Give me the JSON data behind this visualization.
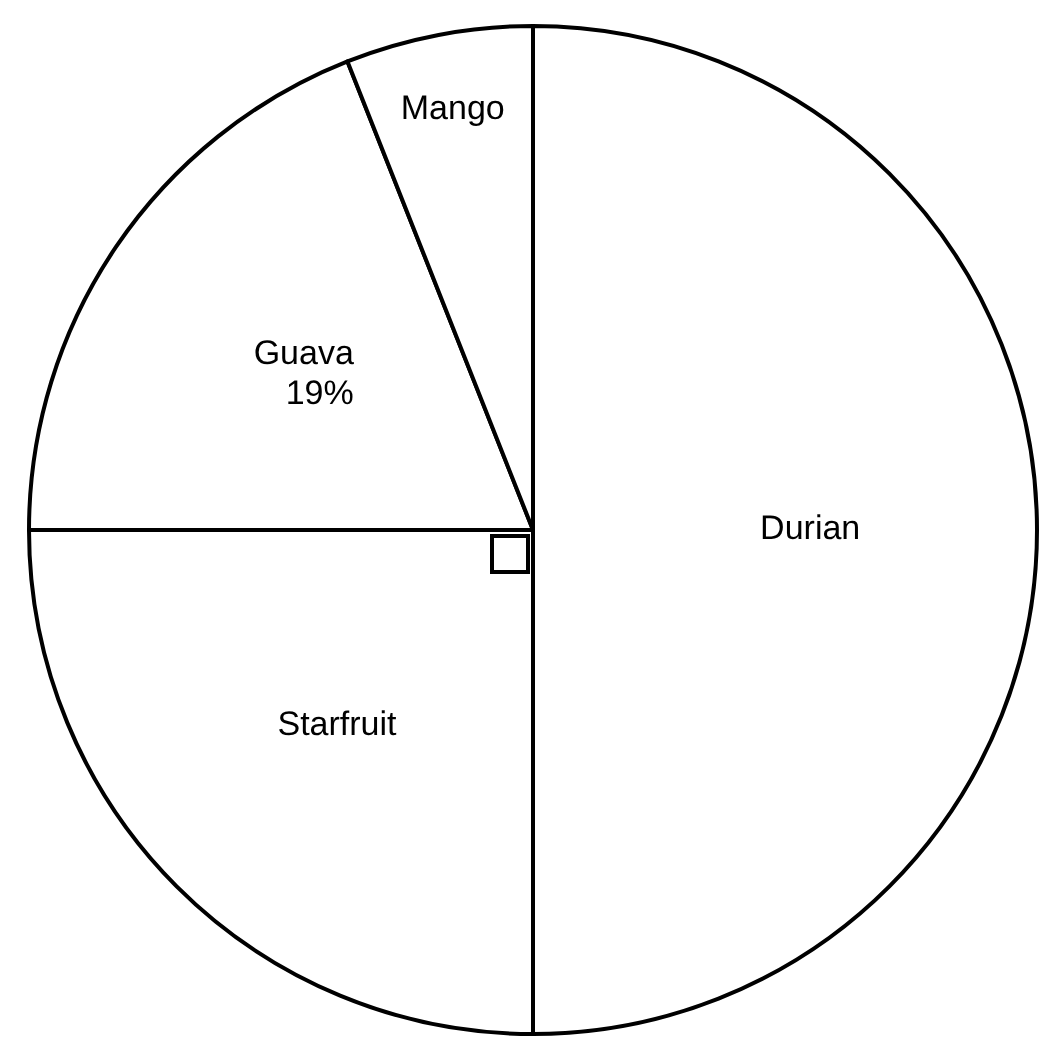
{
  "chart_data": {
    "type": "pie",
    "categories": [
      "Durian",
      "Starfruit",
      "Guava",
      "Mango"
    ],
    "values": [
      50,
      25,
      19,
      6
    ],
    "colors": [
      "#ffffff",
      "#ffffff",
      "#ffffff",
      "#ffffff"
    ],
    "value_labels": [
      null,
      null,
      "19%",
      null
    ]
  }
}
